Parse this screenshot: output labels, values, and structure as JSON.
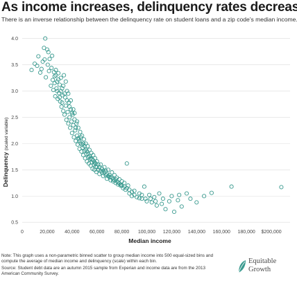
{
  "title": "As income increases, delinquency rates decrease",
  "subtitle": "There is an inverse relationship between the delinquency rate on student loans and a zip code's median income.",
  "note": "Note: This graph uses a non-parametric binned scatter to group median income into 500 equal-sized bins and compute the average of median income and delinquency (scale) within each bin.",
  "source": "Source: Student debt data are an autumn 2015 sample from Experian and income data are from the 2013 American Community Survey.",
  "logo": {
    "line1": "Equitable",
    "line2": "Growth"
  },
  "colors": {
    "points": "#3a9a8f",
    "gridline": "#dcdcdc"
  },
  "chart_data": {
    "type": "scatter",
    "xlabel": "Median income",
    "ylabel": "Delinquency",
    "ylabel_note": "(scaled variable)",
    "xlim": [
      0,
      215000
    ],
    "ylim": [
      0.45,
      4.1
    ],
    "grid": "horizontal",
    "xticks": [
      0,
      20000,
      40000,
      60000,
      80000,
      100000,
      120000,
      140000,
      160000,
      180000,
      200000
    ],
    "xtick_labels": [
      "0",
      "20,000",
      "40,000",
      "60,000",
      "80,000",
      "100,000",
      "120,000",
      "140,000",
      "160,000",
      "180,000",
      "$200,000"
    ],
    "yticks": [
      0.5,
      1.0,
      1.5,
      2.0,
      2.5,
      3.0,
      3.5,
      4.0
    ],
    "ytick_labels": [
      "0.5",
      "1.0",
      "1.5",
      "2.0",
      "2.5",
      "3.0",
      "3.5",
      "4.0"
    ],
    "points": [
      [
        7500,
        3.4
      ],
      [
        10000,
        3.52
      ],
      [
        12000,
        3.48
      ],
      [
        13000,
        3.66
      ],
      [
        14500,
        3.35
      ],
      [
        15500,
        3.42
      ],
      [
        16500,
        3.56
      ],
      [
        17500,
        3.82
      ],
      [
        18000,
        3.6
      ],
      [
        18500,
        4.0
      ],
      [
        19000,
        3.26
      ],
      [
        20000,
        3.79
      ],
      [
        20500,
        3.5
      ],
      [
        21000,
        3.74
      ],
      [
        21500,
        3.38
      ],
      [
        22000,
        3.61
      ],
      [
        23000,
        3.1
      ],
      [
        23500,
        3.44
      ],
      [
        24000,
        3.67
      ],
      [
        24500,
        3.21
      ],
      [
        25000,
        3.02
      ],
      [
        25500,
        3.36
      ],
      [
        26000,
        3.15
      ],
      [
        26500,
        2.9
      ],
      [
        27000,
        3.3
      ],
      [
        27500,
        3.05
      ],
      [
        28000,
        3.18
      ],
      [
        28500,
        2.85
      ],
      [
        29000,
        3.22
      ],
      [
        29500,
        2.96
      ],
      [
        30000,
        3.12
      ],
      [
        30500,
        2.8
      ],
      [
        31000,
        3.25
      ],
      [
        31500,
        2.7
      ],
      [
        32000,
        3.05
      ],
      [
        32500,
        2.92
      ],
      [
        33000,
        2.62
      ],
      [
        33500,
        3.3
      ],
      [
        34000,
        2.55
      ],
      [
        34500,
        2.88
      ],
      [
        35000,
        2.72
      ],
      [
        35500,
        2.45
      ],
      [
        36000,
        3.0
      ],
      [
        36500,
        2.6
      ],
      [
        37000,
        2.38
      ],
      [
        37500,
        2.78
      ],
      [
        38000,
        2.5
      ],
      [
        38500,
        2.3
      ],
      [
        39000,
        2.65
      ],
      [
        39500,
        2.42
      ],
      [
        40000,
        2.2
      ],
      [
        40500,
        2.55
      ],
      [
        41000,
        2.35
      ],
      [
        41500,
        2.12
      ],
      [
        42000,
        2.46
      ],
      [
        42500,
        2.25
      ],
      [
        43000,
        2.05
      ],
      [
        43500,
        2.38
      ],
      [
        44000,
        2.15
      ],
      [
        44500,
        1.98
      ],
      [
        45000,
        2.3
      ],
      [
        45500,
        2.08
      ],
      [
        46000,
        1.9
      ],
      [
        46500,
        2.22
      ],
      [
        47000,
        2.0
      ],
      [
        47500,
        1.85
      ],
      [
        48000,
        2.15
      ],
      [
        48500,
        1.92
      ],
      [
        49000,
        1.78
      ],
      [
        49500,
        2.08
      ],
      [
        50000,
        1.86
      ],
      [
        50500,
        1.72
      ],
      [
        51000,
        2.0
      ],
      [
        51500,
        1.8
      ],
      [
        52000,
        1.66
      ],
      [
        52500,
        1.95
      ],
      [
        53000,
        1.74
      ],
      [
        53500,
        1.62
      ],
      [
        54000,
        1.88
      ],
      [
        54500,
        1.7
      ],
      [
        55000,
        1.58
      ],
      [
        55500,
        1.82
      ],
      [
        56000,
        1.64
      ],
      [
        56500,
        1.52
      ],
      [
        57000,
        1.78
      ],
      [
        57500,
        1.6
      ],
      [
        58000,
        1.5
      ],
      [
        58500,
        1.72
      ],
      [
        59000,
        1.56
      ],
      [
        59500,
        1.46
      ],
      [
        60000,
        1.66
      ],
      [
        61000,
        1.5
      ],
      [
        62000,
        1.42
      ],
      [
        63000,
        1.6
      ],
      [
        64000,
        1.45
      ],
      [
        65000,
        1.38
      ],
      [
        66000,
        1.55
      ],
      [
        67000,
        1.4
      ],
      [
        68000,
        1.33
      ],
      [
        69000,
        1.5
      ],
      [
        70000,
        1.36
      ],
      [
        71000,
        1.3
      ],
      [
        72000,
        1.45
      ],
      [
        73000,
        1.28
      ],
      [
        74000,
        1.4
      ],
      [
        75000,
        1.25
      ],
      [
        76000,
        1.35
      ],
      [
        77000,
        1.22
      ],
      [
        78000,
        1.32
      ],
      [
        79000,
        1.2
      ],
      [
        80000,
        1.28
      ],
      [
        81000,
        1.15
      ],
      [
        82000,
        1.25
      ],
      [
        83000,
        1.12
      ],
      [
        84000,
        1.62
      ],
      [
        85000,
        1.2
      ],
      [
        86000,
        1.05
      ],
      [
        88000,
        1.0
      ],
      [
        90000,
        1.1
      ],
      [
        92000,
        0.98
      ],
      [
        94000,
        1.05
      ],
      [
        96000,
        0.95
      ],
      [
        98000,
        1.18
      ],
      [
        100000,
        0.9
      ],
      [
        102000,
        1.02
      ],
      [
        104000,
        0.88
      ],
      [
        106000,
        0.98
      ],
      [
        108000,
        0.82
      ],
      [
        110000,
        1.05
      ],
      [
        112000,
        0.85
      ],
      [
        115000,
        0.75
      ],
      [
        118000,
        0.9
      ],
      [
        120000,
        1.0
      ],
      [
        122000,
        0.7
      ],
      [
        125000,
        0.92
      ],
      [
        128000,
        0.8
      ],
      [
        132000,
        1.05
      ],
      [
        135000,
        0.95
      ],
      [
        140000,
        0.88
      ],
      [
        146000,
        1.0
      ],
      [
        152000,
        1.06
      ],
      [
        168000,
        1.18
      ],
      [
        208000,
        1.17
      ],
      [
        26000,
        3.28
      ],
      [
        27000,
        3.4
      ],
      [
        28000,
        3.0
      ],
      [
        29000,
        3.34
      ],
      [
        30000,
        2.88
      ],
      [
        31000,
        3.0
      ],
      [
        32000,
        2.78
      ],
      [
        33000,
        3.1
      ],
      [
        34000,
        2.95
      ],
      [
        35000,
        3.18
      ],
      [
        36000,
        2.82
      ],
      [
        37000,
        2.95
      ],
      [
        38000,
        2.7
      ],
      [
        39000,
        2.82
      ],
      [
        40000,
        2.58
      ],
      [
        41000,
        2.65
      ],
      [
        42000,
        2.58
      ],
      [
        43000,
        2.3
      ],
      [
        44000,
        2.42
      ],
      [
        45000,
        2.1
      ],
      [
        46000,
        2.05
      ],
      [
        47000,
        2.12
      ],
      [
        48000,
        1.98
      ],
      [
        49000,
        2.0
      ],
      [
        50000,
        1.95
      ],
      [
        51000,
        1.88
      ],
      [
        52000,
        1.85
      ],
      [
        53000,
        1.8
      ],
      [
        54000,
        1.76
      ],
      [
        55000,
        1.72
      ],
      [
        56000,
        1.7
      ],
      [
        57000,
        1.68
      ],
      [
        58000,
        1.64
      ],
      [
        59000,
        1.62
      ],
      [
        60000,
        1.55
      ],
      [
        61000,
        1.6
      ],
      [
        62000,
        1.55
      ],
      [
        63000,
        1.48
      ],
      [
        64000,
        1.52
      ],
      [
        65000,
        1.48
      ],
      [
        66000,
        1.45
      ],
      [
        67000,
        1.48
      ],
      [
        68000,
        1.42
      ],
      [
        69000,
        1.38
      ],
      [
        70000,
        1.4
      ],
      [
        71000,
        1.36
      ],
      [
        72000,
        1.35
      ],
      [
        73000,
        1.32
      ],
      [
        74000,
        1.3
      ],
      [
        75000,
        1.32
      ],
      [
        76000,
        1.28
      ],
      [
        77000,
        1.26
      ],
      [
        78000,
        1.24
      ],
      [
        79000,
        1.22
      ],
      [
        80000,
        1.2
      ],
      [
        82000,
        1.18
      ],
      [
        84000,
        1.15
      ],
      [
        86000,
        1.12
      ],
      [
        88000,
        1.08
      ],
      [
        90000,
        1.02
      ],
      [
        94000,
        0.96
      ],
      [
        96000,
        1.02
      ],
      [
        99000,
        0.95
      ],
      [
        103000,
        0.95
      ],
      [
        107000,
        0.9
      ],
      [
        113000,
        0.95
      ],
      [
        126000,
        1.02
      ]
    ]
  }
}
